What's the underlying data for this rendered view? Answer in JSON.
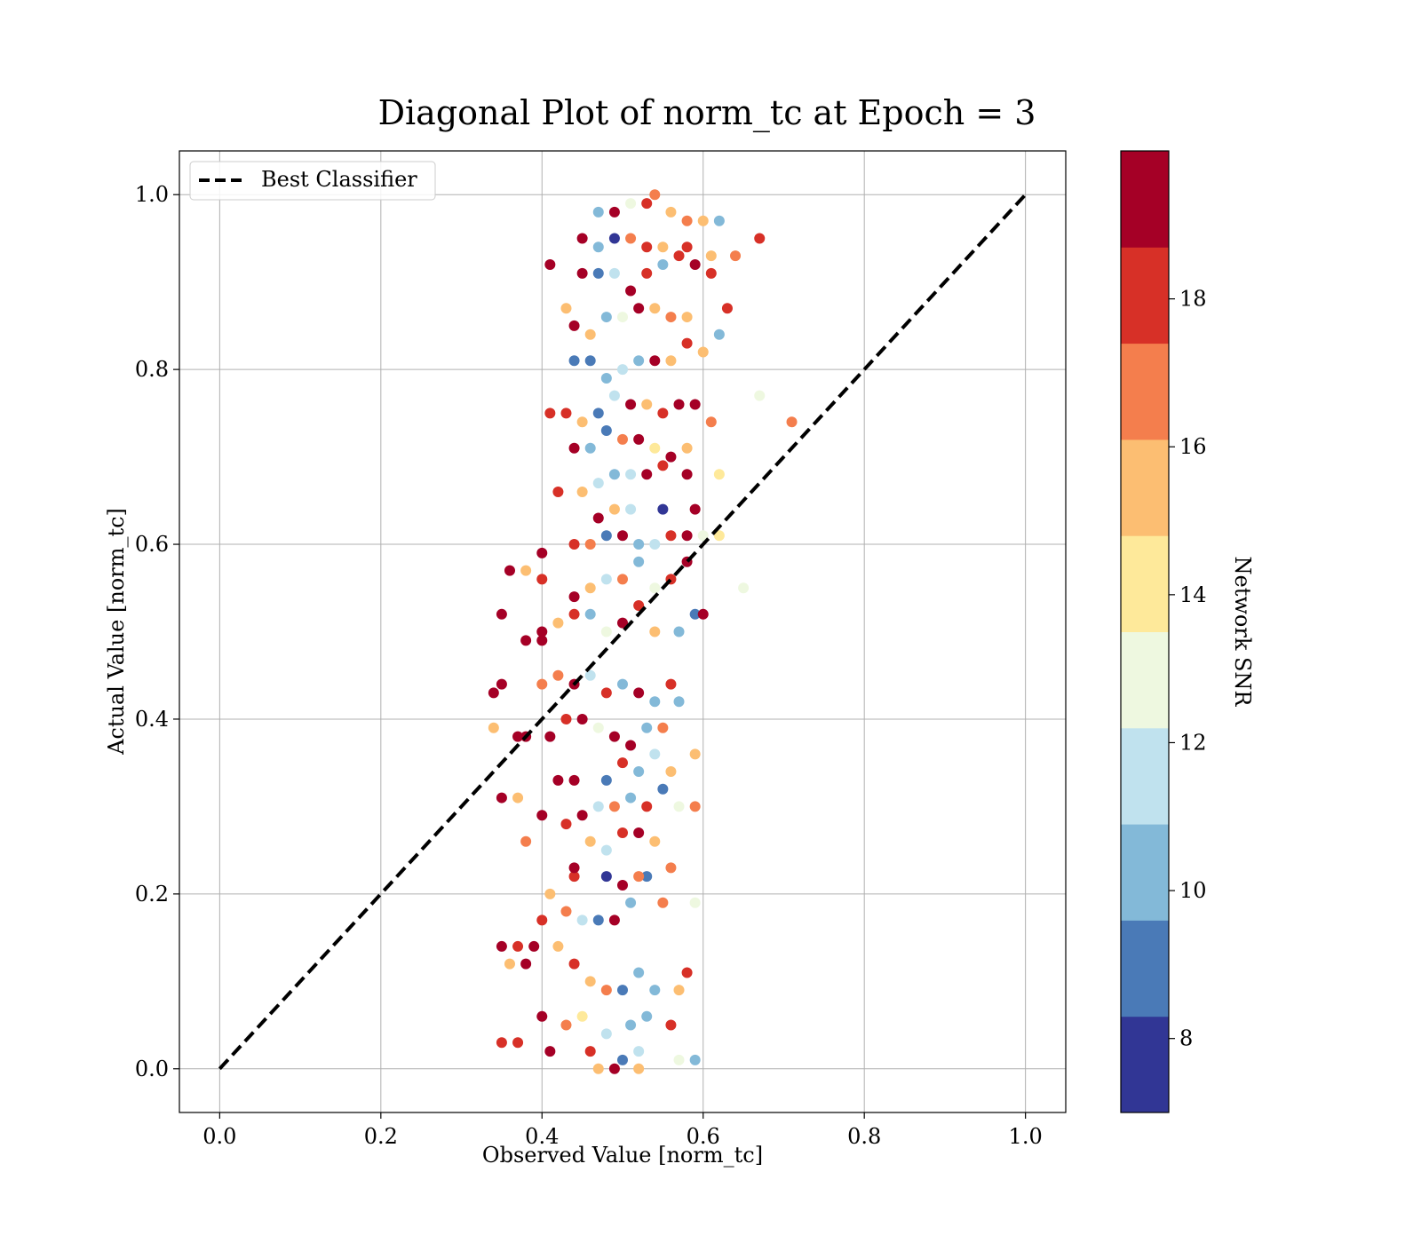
{
  "chart_data": {
    "type": "scatter",
    "title": "Diagonal Plot of norm_tc at Epoch = 3",
    "xlabel": "Observed Value [norm_tc]",
    "ylabel": "Actual Value [norm_tc]",
    "xlim": [
      -0.05,
      1.05
    ],
    "ylim": [
      -0.05,
      1.05
    ],
    "x_ticks": [
      0.0,
      0.2,
      0.4,
      0.6,
      0.8,
      1.0
    ],
    "x_tick_labels": [
      "0.0",
      "0.2",
      "0.4",
      "0.6",
      "0.8",
      "1.0"
    ],
    "y_ticks": [
      0.0,
      0.2,
      0.4,
      0.6,
      0.8,
      1.0
    ],
    "y_tick_labels": [
      "0.0",
      "0.2",
      "0.4",
      "0.6",
      "0.8",
      "1.0"
    ],
    "grid": true,
    "legend": {
      "placement": "upper-left",
      "entries": [
        "Best Classifier"
      ]
    },
    "reference_line": {
      "name": "Best Classifier",
      "style": "dashed",
      "color": "#000000",
      "x": [
        0.0,
        1.0
      ],
      "y": [
        0.0,
        1.0
      ]
    },
    "colorbar": {
      "label": "Network SNR",
      "range": [
        7,
        20
      ],
      "ticks": [
        8,
        10,
        12,
        14,
        16,
        18
      ],
      "tick_labels": [
        "8",
        "10",
        "12",
        "14",
        "16",
        "18"
      ],
      "bins": 10,
      "colors": [
        "#313695",
        "#4a7ab7",
        "#83b9d8",
        "#c0e2ee",
        "#eef8e0",
        "#fee99a",
        "#fcbe72",
        "#f47e4d",
        "#d73027",
        "#a50026"
      ]
    },
    "series": [
      {
        "color_value_label": "Network SNR",
        "points": [
          [
            0.49,
            0.0,
            19.2
          ],
          [
            0.47,
            0.0,
            16.0
          ],
          [
            0.52,
            0.0,
            15.1
          ],
          [
            0.5,
            0.01,
            8.5
          ],
          [
            0.46,
            0.02,
            17.6
          ],
          [
            0.52,
            0.02,
            11.3
          ],
          [
            0.57,
            0.01,
            12.9
          ],
          [
            0.59,
            0.01,
            10.0
          ],
          [
            0.41,
            0.02,
            19.3
          ],
          [
            0.43,
            0.05,
            17.0
          ],
          [
            0.45,
            0.06,
            13.5
          ],
          [
            0.48,
            0.04,
            11.5
          ],
          [
            0.51,
            0.05,
            10.5
          ],
          [
            0.53,
            0.06,
            10.0
          ],
          [
            0.56,
            0.05,
            18.5
          ],
          [
            0.4,
            0.06,
            19.0
          ],
          [
            0.35,
            0.03,
            18.3
          ],
          [
            0.37,
            0.03,
            17.8
          ],
          [
            0.44,
            0.12,
            18.2
          ],
          [
            0.42,
            0.14,
            16.0
          ],
          [
            0.46,
            0.1,
            15.2
          ],
          [
            0.48,
            0.09,
            17.1
          ],
          [
            0.5,
            0.09,
            8.6
          ],
          [
            0.52,
            0.11,
            10.4
          ],
          [
            0.54,
            0.09,
            10.1
          ],
          [
            0.57,
            0.09,
            15.0
          ],
          [
            0.58,
            0.11,
            17.5
          ],
          [
            0.35,
            0.14,
            19.2
          ],
          [
            0.37,
            0.14,
            17.9
          ],
          [
            0.39,
            0.14,
            19.0
          ],
          [
            0.38,
            0.12,
            19.1
          ],
          [
            0.36,
            0.12,
            15.0
          ],
          [
            0.4,
            0.17,
            18.3
          ],
          [
            0.43,
            0.18,
            16.8
          ],
          [
            0.45,
            0.17,
            12.2
          ],
          [
            0.47,
            0.17,
            9.0
          ],
          [
            0.49,
            0.17,
            19.0
          ],
          [
            0.51,
            0.19,
            10.6
          ],
          [
            0.53,
            0.22,
            8.4
          ],
          [
            0.55,
            0.19,
            17.3
          ],
          [
            0.59,
            0.19,
            12.6
          ],
          [
            0.41,
            0.2,
            15.2
          ],
          [
            0.44,
            0.22,
            17.5
          ],
          [
            0.48,
            0.22,
            8.2
          ],
          [
            0.5,
            0.21,
            18.9
          ],
          [
            0.52,
            0.22,
            17.1
          ],
          [
            0.56,
            0.23,
            17.0
          ],
          [
            0.44,
            0.23,
            19.0
          ],
          [
            0.46,
            0.26,
            15.5
          ],
          [
            0.48,
            0.25,
            11.5
          ],
          [
            0.5,
            0.27,
            18.0
          ],
          [
            0.52,
            0.27,
            19.2
          ],
          [
            0.54,
            0.26,
            15.0
          ],
          [
            0.38,
            0.26,
            16.5
          ],
          [
            0.43,
            0.28,
            17.9
          ],
          [
            0.47,
            0.3,
            12.0
          ],
          [
            0.45,
            0.29,
            19.5
          ],
          [
            0.49,
            0.3,
            16.8
          ],
          [
            0.51,
            0.31,
            10.5
          ],
          [
            0.53,
            0.3,
            17.6
          ],
          [
            0.55,
            0.32,
            8.3
          ],
          [
            0.57,
            0.3,
            12.5
          ],
          [
            0.59,
            0.3,
            17.2
          ],
          [
            0.4,
            0.29,
            19.0
          ],
          [
            0.37,
            0.31,
            15.5
          ],
          [
            0.35,
            0.31,
            19.0
          ],
          [
            0.42,
            0.33,
            18.7
          ],
          [
            0.44,
            0.33,
            18.8
          ],
          [
            0.48,
            0.33,
            9.0
          ],
          [
            0.5,
            0.35,
            18.2
          ],
          [
            0.52,
            0.34,
            10.7
          ],
          [
            0.54,
            0.36,
            11.5
          ],
          [
            0.56,
            0.34,
            15.5
          ],
          [
            0.59,
            0.36,
            15.3
          ],
          [
            0.38,
            0.38,
            18.8
          ],
          [
            0.41,
            0.38,
            19.2
          ],
          [
            0.43,
            0.4,
            18.5
          ],
          [
            0.45,
            0.4,
            19.0
          ],
          [
            0.47,
            0.39,
            12.5
          ],
          [
            0.49,
            0.38,
            19.1
          ],
          [
            0.51,
            0.37,
            19.5
          ],
          [
            0.53,
            0.39,
            10.2
          ],
          [
            0.55,
            0.39,
            16.5
          ],
          [
            0.34,
            0.39,
            15.5
          ],
          [
            0.37,
            0.38,
            19.2
          ],
          [
            0.34,
            0.43,
            19.3
          ],
          [
            0.35,
            0.44,
            19.5
          ],
          [
            0.4,
            0.44,
            17.0
          ],
          [
            0.42,
            0.45,
            17.4
          ],
          [
            0.44,
            0.44,
            19.0
          ],
          [
            0.46,
            0.45,
            11.0
          ],
          [
            0.48,
            0.43,
            18.5
          ],
          [
            0.5,
            0.44,
            10.0
          ],
          [
            0.52,
            0.43,
            19.0
          ],
          [
            0.54,
            0.42,
            10.5
          ],
          [
            0.56,
            0.44,
            18.5
          ],
          [
            0.57,
            0.42,
            10.5
          ],
          [
            0.38,
            0.49,
            19.2
          ],
          [
            0.4,
            0.49,
            19.3
          ],
          [
            0.4,
            0.5,
            19.5
          ],
          [
            0.42,
            0.51,
            15.0
          ],
          [
            0.44,
            0.52,
            17.5
          ],
          [
            0.46,
            0.52,
            10.0
          ],
          [
            0.48,
            0.5,
            12.5
          ],
          [
            0.5,
            0.51,
            19.3
          ],
          [
            0.52,
            0.53,
            18.5
          ],
          [
            0.54,
            0.5,
            15.0
          ],
          [
            0.57,
            0.5,
            10.0
          ],
          [
            0.35,
            0.52,
            19.3
          ],
          [
            0.36,
            0.57,
            19.0
          ],
          [
            0.38,
            0.57,
            15.5
          ],
          [
            0.4,
            0.59,
            19.1
          ],
          [
            0.4,
            0.56,
            18.2
          ],
          [
            0.44,
            0.54,
            19.5
          ],
          [
            0.46,
            0.55,
            15.0
          ],
          [
            0.48,
            0.56,
            11.0
          ],
          [
            0.5,
            0.56,
            17.2
          ],
          [
            0.52,
            0.58,
            10.5
          ],
          [
            0.54,
            0.55,
            13.0
          ],
          [
            0.56,
            0.56,
            17.6
          ],
          [
            0.58,
            0.58,
            19.0
          ],
          [
            0.59,
            0.52,
            8.5
          ],
          [
            0.6,
            0.52,
            19.5
          ],
          [
            0.65,
            0.55,
            12.8
          ],
          [
            0.44,
            0.6,
            18.3
          ],
          [
            0.46,
            0.6,
            16.5
          ],
          [
            0.48,
            0.61,
            8.5
          ],
          [
            0.5,
            0.61,
            19.0
          ],
          [
            0.52,
            0.6,
            10.0
          ],
          [
            0.54,
            0.6,
            11.0
          ],
          [
            0.56,
            0.61,
            17.8
          ],
          [
            0.58,
            0.61,
            19.1
          ],
          [
            0.6,
            0.61,
            12.6
          ],
          [
            0.62,
            0.61,
            14.5
          ],
          [
            0.47,
            0.63,
            19.2
          ],
          [
            0.49,
            0.64,
            15.5
          ],
          [
            0.51,
            0.64,
            11.5
          ],
          [
            0.55,
            0.64,
            8.2
          ],
          [
            0.59,
            0.64,
            19.3
          ],
          [
            0.42,
            0.66,
            17.5
          ],
          [
            0.45,
            0.66,
            16.0
          ],
          [
            0.47,
            0.67,
            11.0
          ],
          [
            0.49,
            0.68,
            10.5
          ],
          [
            0.51,
            0.68,
            11.8
          ],
          [
            0.53,
            0.68,
            19.5
          ],
          [
            0.55,
            0.69,
            17.5
          ],
          [
            0.58,
            0.68,
            19.0
          ],
          [
            0.62,
            0.68,
            14.0
          ],
          [
            0.44,
            0.71,
            19.0
          ],
          [
            0.46,
            0.71,
            10.0
          ],
          [
            0.48,
            0.73,
            8.3
          ],
          [
            0.5,
            0.72,
            16.5
          ],
          [
            0.52,
            0.72,
            19.0
          ],
          [
            0.54,
            0.71,
            14.5
          ],
          [
            0.56,
            0.7,
            19.3
          ],
          [
            0.58,
            0.71,
            15.5
          ],
          [
            0.41,
            0.75,
            17.8
          ],
          [
            0.43,
            0.75,
            17.6
          ],
          [
            0.45,
            0.74,
            16.0
          ],
          [
            0.47,
            0.75,
            8.5
          ],
          [
            0.49,
            0.77,
            11.5
          ],
          [
            0.51,
            0.76,
            19.0
          ],
          [
            0.53,
            0.76,
            15.0
          ],
          [
            0.55,
            0.75,
            18.5
          ],
          [
            0.57,
            0.76,
            19.2
          ],
          [
            0.59,
            0.76,
            19.5
          ],
          [
            0.61,
            0.74,
            17.0
          ],
          [
            0.67,
            0.77,
            12.7
          ],
          [
            0.71,
            0.74,
            16.9
          ],
          [
            0.44,
            0.81,
            8.3
          ],
          [
            0.46,
            0.81,
            8.5
          ],
          [
            0.48,
            0.79,
            10.0
          ],
          [
            0.5,
            0.8,
            12.0
          ],
          [
            0.52,
            0.81,
            10.3
          ],
          [
            0.54,
            0.81,
            19.0
          ],
          [
            0.56,
            0.81,
            15.5
          ],
          [
            0.58,
            0.83,
            17.5
          ],
          [
            0.6,
            0.82,
            15.3
          ],
          [
            0.44,
            0.85,
            19.0
          ],
          [
            0.46,
            0.84,
            15.5
          ],
          [
            0.48,
            0.86,
            10.5
          ],
          [
            0.5,
            0.86,
            12.3
          ],
          [
            0.52,
            0.87,
            19.2
          ],
          [
            0.54,
            0.87,
            16.0
          ],
          [
            0.56,
            0.86,
            17.0
          ],
          [
            0.58,
            0.86,
            15.0
          ],
          [
            0.62,
            0.84,
            10.5
          ],
          [
            0.63,
            0.87,
            18.5
          ],
          [
            0.43,
            0.87,
            15.2
          ],
          [
            0.45,
            0.91,
            19.3
          ],
          [
            0.47,
            0.91,
            8.5
          ],
          [
            0.49,
            0.91,
            12.0
          ],
          [
            0.51,
            0.89,
            18.8
          ],
          [
            0.53,
            0.91,
            17.5
          ],
          [
            0.55,
            0.92,
            10.5
          ],
          [
            0.57,
            0.93,
            17.5
          ],
          [
            0.59,
            0.92,
            19.0
          ],
          [
            0.61,
            0.91,
            17.5
          ],
          [
            0.41,
            0.92,
            19.5
          ],
          [
            0.45,
            0.95,
            19.2
          ],
          [
            0.47,
            0.94,
            10.0
          ],
          [
            0.49,
            0.95,
            8.2
          ],
          [
            0.51,
            0.95,
            17.2
          ],
          [
            0.53,
            0.94,
            18.5
          ],
          [
            0.55,
            0.94,
            16.0
          ],
          [
            0.58,
            0.94,
            18.3
          ],
          [
            0.61,
            0.93,
            15.0
          ],
          [
            0.64,
            0.93,
            16.8
          ],
          [
            0.67,
            0.95,
            18.5
          ],
          [
            0.47,
            0.98,
            10.5
          ],
          [
            0.49,
            0.98,
            19.5
          ],
          [
            0.51,
            0.99,
            12.5
          ],
          [
            0.53,
            0.99,
            18.0
          ],
          [
            0.54,
            1.0,
            17.0
          ],
          [
            0.56,
            0.98,
            15.0
          ],
          [
            0.58,
            0.97,
            17.0
          ],
          [
            0.6,
            0.97,
            15.3
          ],
          [
            0.62,
            0.97,
            10.0
          ]
        ]
      }
    ]
  }
}
